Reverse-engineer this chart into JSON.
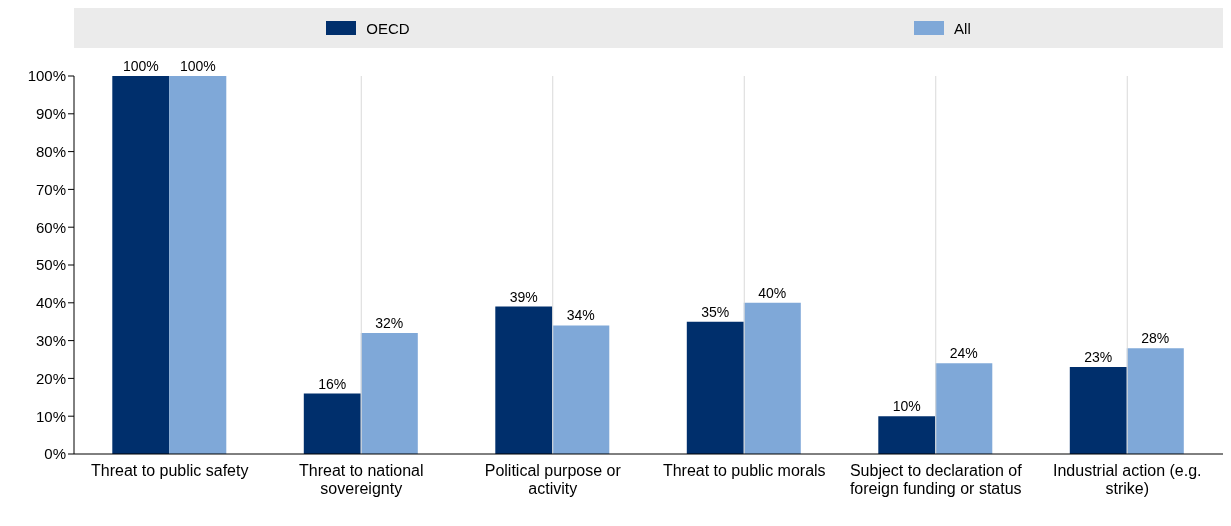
{
  "chart_data": {
    "type": "bar",
    "categories": [
      "Threat to public safety",
      "Threat to national sovereignty",
      "Political purpose or activity",
      "Threat to public morals",
      "Subject to declaration of foreign funding or status",
      "Industrial action (e.g. strike)"
    ],
    "series": [
      {
        "name": "OECD",
        "color": "#002f6c",
        "values": [
          100,
          16,
          39,
          35,
          10,
          23
        ],
        "value_labels": [
          "100%",
          "16%",
          "39%",
          "35%",
          "10%",
          "23%"
        ]
      },
      {
        "name": "All",
        "color": "#7fa8d8",
        "values": [
          100,
          32,
          34,
          40,
          24,
          28
        ],
        "value_labels": [
          "100%",
          "32%",
          "34%",
          "40%",
          "24%",
          "28%"
        ]
      }
    ],
    "ylim": [
      0,
      100
    ],
    "yticks": [
      {
        "value": 0,
        "label": "0%"
      },
      {
        "value": 10,
        "label": "10%"
      },
      {
        "value": 20,
        "label": "20%"
      },
      {
        "value": 30,
        "label": "30%"
      },
      {
        "value": 40,
        "label": "40%"
      },
      {
        "value": 50,
        "label": "50%"
      },
      {
        "value": 60,
        "label": "60%"
      },
      {
        "value": 70,
        "label": "70%"
      },
      {
        "value": 80,
        "label": "80%"
      },
      {
        "value": 90,
        "label": "90%"
      },
      {
        "value": 100,
        "label": "100%"
      }
    ],
    "grid": "x",
    "legend": "top"
  }
}
